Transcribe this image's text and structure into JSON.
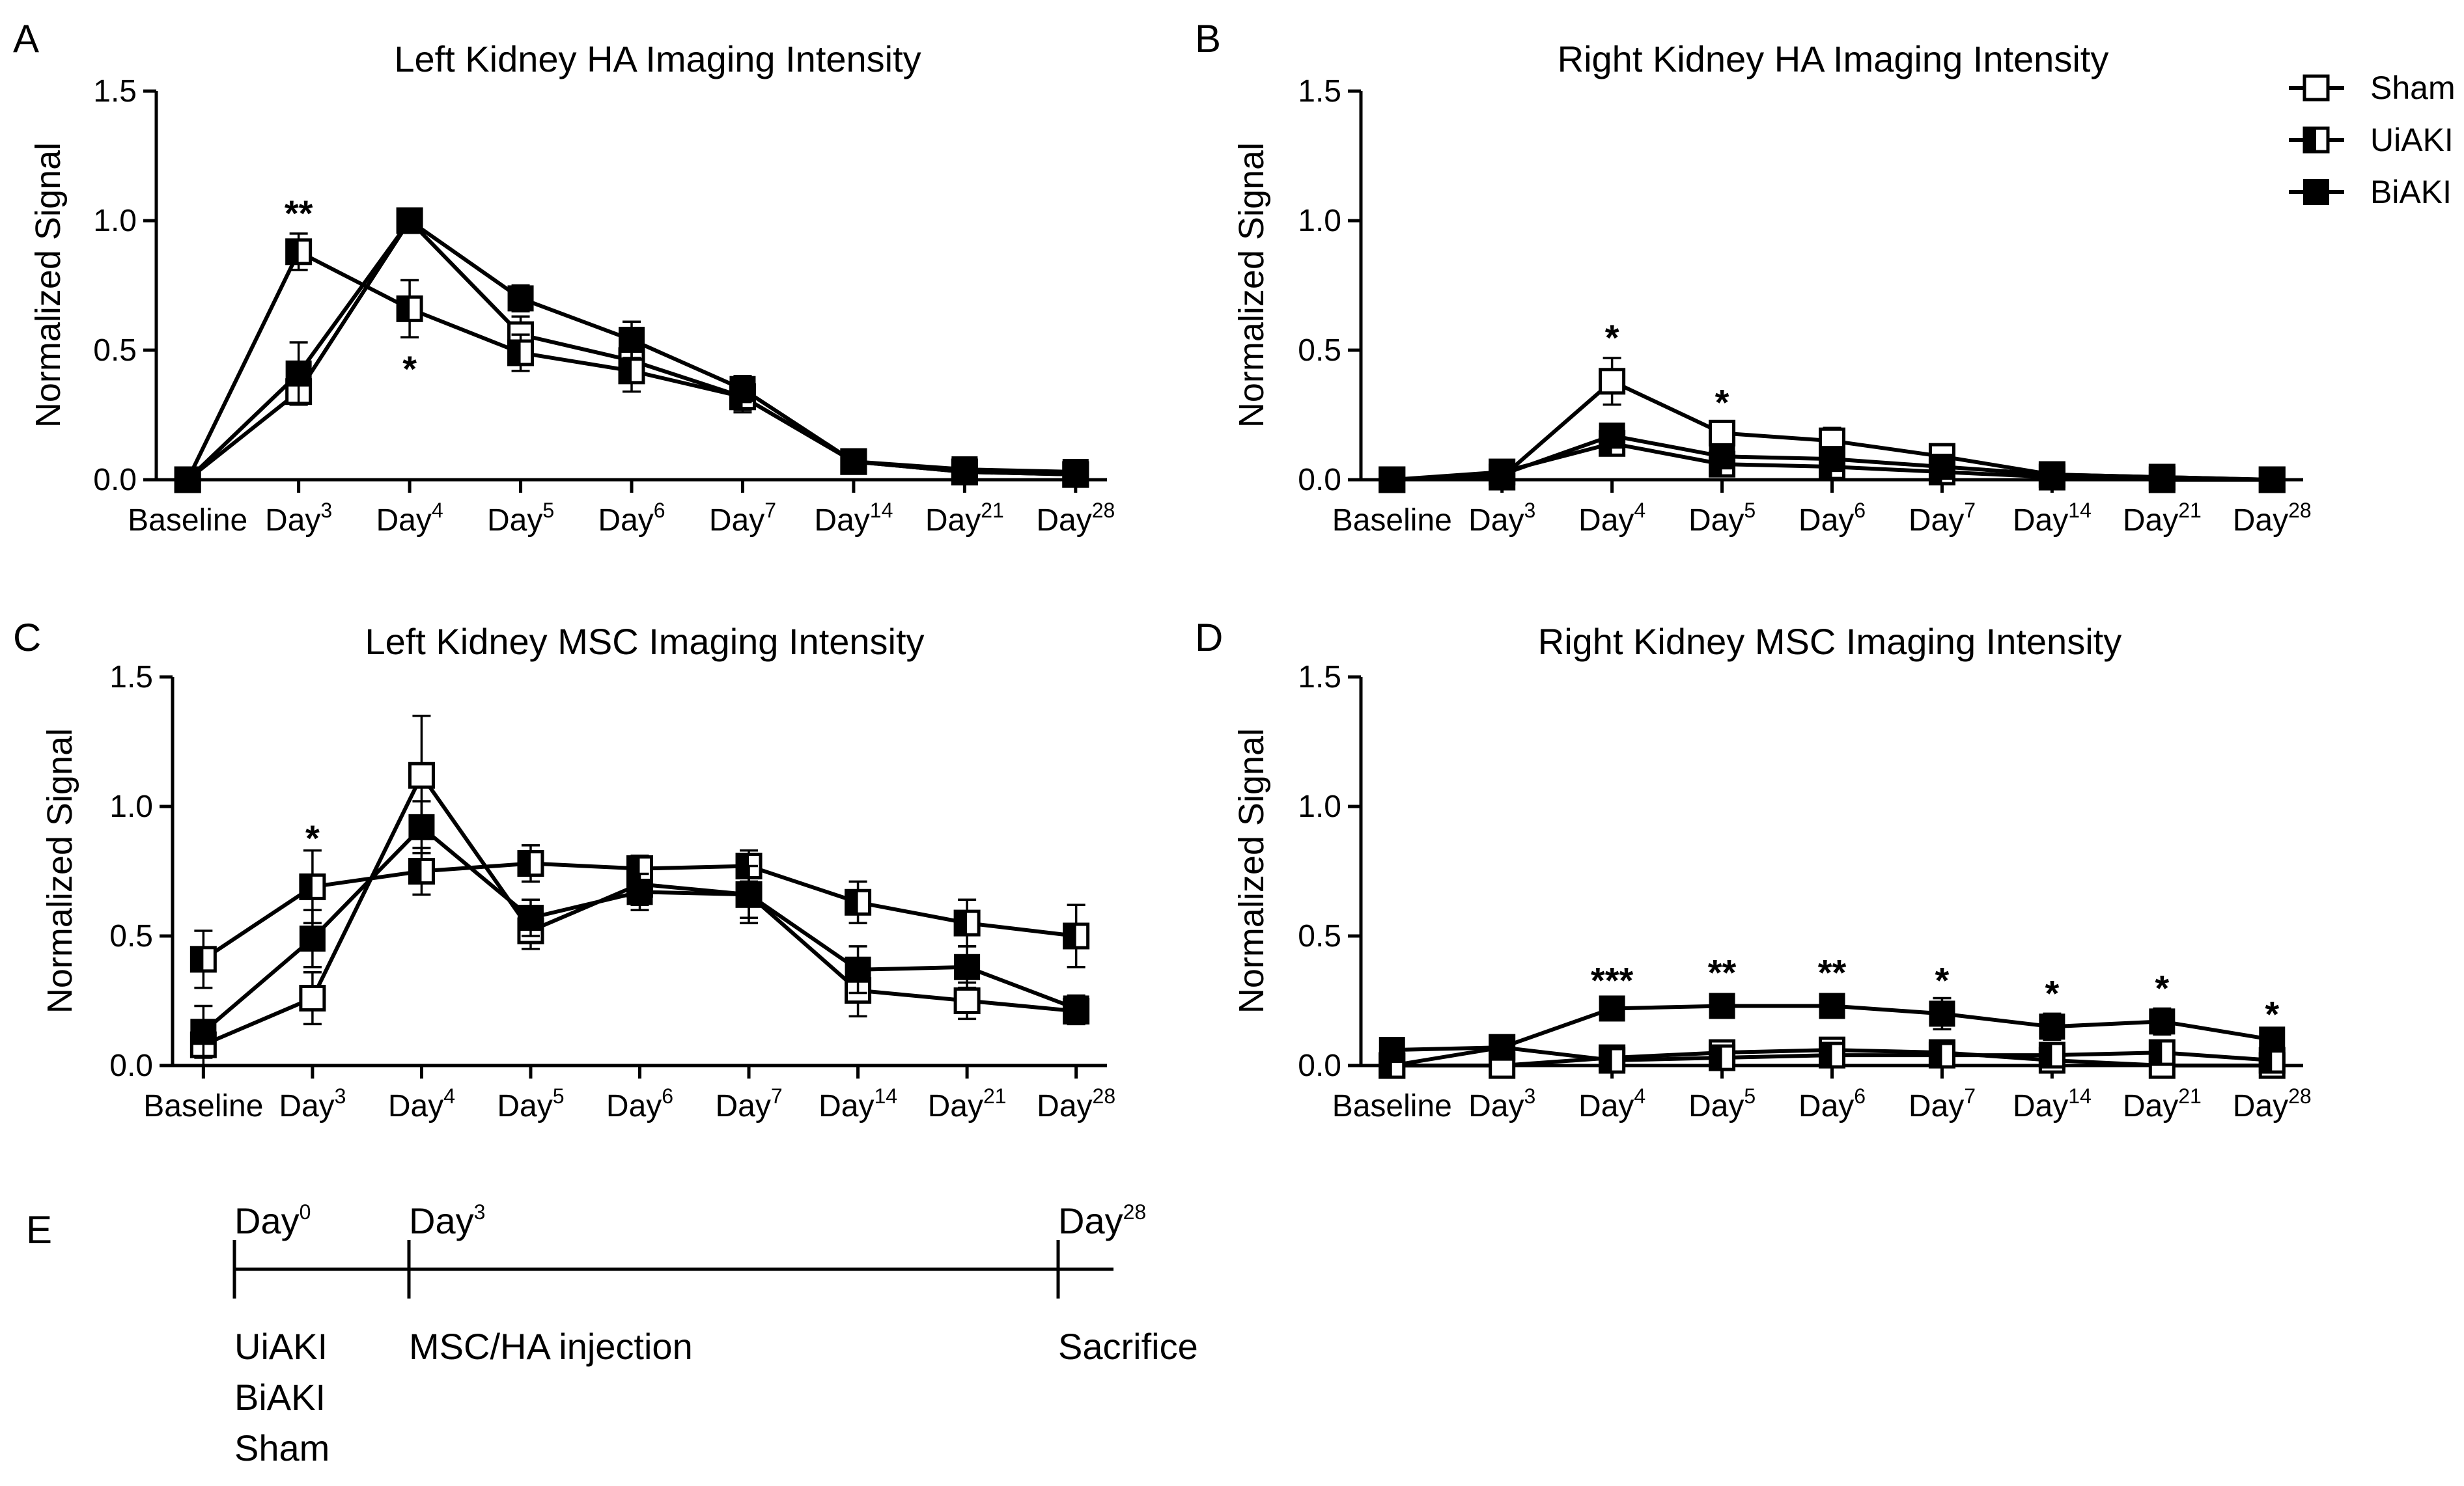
{
  "chart_data": [
    {
      "panel": "A",
      "type": "line",
      "title": "Left Kidney HA Imaging Intensity",
      "ylabel": "Normalized Signal",
      "xlabel": "",
      "ylim": [
        0,
        1.5
      ],
      "yticks": [
        "0.0",
        "0.5",
        "1.0",
        "1.5"
      ],
      "categories": [
        "Baseline",
        "Day3",
        "Day4",
        "Day5",
        "Day6",
        "Day7",
        "Day14",
        "Day21",
        "Day28"
      ],
      "series": [
        {
          "name": "Sham",
          "marker": "open-square",
          "values": [
            0.0,
            0.34,
            1.0,
            0.56,
            0.46,
            0.32,
            0.07,
            0.03,
            0.02
          ],
          "errors": [
            0.02,
            0.05,
            0.02,
            0.07,
            0.06,
            0.05,
            0.02,
            0.01,
            0.01
          ]
        },
        {
          "name": "UiAKI",
          "marker": "half-square",
          "values": [
            0.0,
            0.88,
            0.66,
            0.49,
            0.42,
            0.32,
            0.07,
            0.03,
            0.02
          ],
          "errors": [
            0.02,
            0.07,
            0.11,
            0.07,
            0.08,
            0.06,
            0.02,
            0.01,
            0.01
          ]
        },
        {
          "name": "BiAKI",
          "marker": "filled-square",
          "values": [
            0.0,
            0.41,
            1.0,
            0.7,
            0.54,
            0.35,
            0.07,
            0.04,
            0.03
          ],
          "errors": [
            0.02,
            0.12,
            0.02,
            0.05,
            0.07,
            0.05,
            0.02,
            0.01,
            0.01
          ]
        }
      ],
      "annotations": [
        {
          "text": "**",
          "category": "Day3",
          "y": 1.03
        },
        {
          "text": "*",
          "category": "Day4",
          "y": 0.43
        }
      ]
    },
    {
      "panel": "B",
      "type": "line",
      "title": "Right Kidney HA Imaging Intensity",
      "ylabel": "Normalized Signal",
      "xlabel": "",
      "ylim": [
        0,
        1.5
      ],
      "yticks": [
        "0.0",
        "0.5",
        "1.0",
        "1.5"
      ],
      "categories": [
        "Baseline",
        "Day3",
        "Day4",
        "Day5",
        "Day6",
        "Day7",
        "Day14",
        "Day21",
        "Day28"
      ],
      "series": [
        {
          "name": "Sham",
          "marker": "open-square",
          "values": [
            0.0,
            0.01,
            0.38,
            0.18,
            0.15,
            0.09,
            0.02,
            0.01,
            0.0
          ],
          "errors": [
            0.01,
            0.04,
            0.09,
            0.04,
            0.05,
            0.03,
            0.01,
            0.01,
            0.01
          ]
        },
        {
          "name": "UiAKI",
          "marker": "half-square",
          "values": [
            0.0,
            0.03,
            0.14,
            0.06,
            0.05,
            0.03,
            0.01,
            0.0,
            0.0
          ],
          "errors": [
            0.01,
            0.03,
            0.04,
            0.02,
            0.02,
            0.01,
            0.01,
            0.01,
            0.01
          ]
        },
        {
          "name": "BiAKI",
          "marker": "filled-square",
          "values": [
            0.0,
            0.02,
            0.17,
            0.09,
            0.08,
            0.05,
            0.02,
            0.01,
            0.0
          ],
          "errors": [
            0.01,
            0.03,
            0.04,
            0.03,
            0.03,
            0.02,
            0.01,
            0.01,
            0.01
          ]
        }
      ],
      "annotations": [
        {
          "text": "*",
          "category": "Day4",
          "y": 0.55
        },
        {
          "text": "*",
          "category": "Day5",
          "y": 0.3
        }
      ]
    },
    {
      "panel": "C",
      "type": "line",
      "title": "Left Kidney MSC Imaging Intensity",
      "ylabel": "Normalized Signal",
      "xlabel": "",
      "ylim": [
        0,
        1.5
      ],
      "yticks": [
        "0.0",
        "0.5",
        "1.0",
        "1.5"
      ],
      "categories": [
        "Baseline",
        "Day3",
        "Day4",
        "Day5",
        "Day6",
        "Day7",
        "Day14",
        "Day21",
        "Day28"
      ],
      "series": [
        {
          "name": "Sham",
          "marker": "open-square",
          "values": [
            0.08,
            0.26,
            1.12,
            0.52,
            0.7,
            0.66,
            0.29,
            0.25,
            0.21
          ],
          "errors": [
            0.09,
            0.1,
            0.23,
            0.07,
            0.08,
            0.09,
            0.1,
            0.07,
            0.05
          ]
        },
        {
          "name": "UiAKI",
          "marker": "half-square",
          "values": [
            0.41,
            0.69,
            0.75,
            0.78,
            0.76,
            0.77,
            0.63,
            0.55,
            0.5
          ],
          "errors": [
            0.11,
            0.14,
            0.09,
            0.07,
            0.05,
            0.06,
            0.08,
            0.09,
            0.12
          ]
        },
        {
          "name": "BiAKI",
          "marker": "filled-square",
          "values": [
            0.13,
            0.49,
            0.92,
            0.57,
            0.67,
            0.66,
            0.37,
            0.38,
            0.22
          ],
          "errors": [
            0.1,
            0.11,
            0.1,
            0.07,
            0.07,
            0.11,
            0.09,
            0.08,
            0.05
          ]
        }
      ],
      "annotations": [
        {
          "text": "*",
          "category": "Day3",
          "y": 0.88
        }
      ]
    },
    {
      "panel": "D",
      "type": "line",
      "title": "Right Kidney MSC Imaging Intensity",
      "ylabel": "Normalized Signal",
      "xlabel": "",
      "ylim": [
        0,
        1.5
      ],
      "yticks": [
        "0.0",
        "0.5",
        "1.0",
        "1.5"
      ],
      "categories": [
        "Baseline",
        "Day3",
        "Day4",
        "Day5",
        "Day6",
        "Day7",
        "Day14",
        "Day21",
        "Day28"
      ],
      "series": [
        {
          "name": "Sham",
          "marker": "open-square",
          "values": [
            0.0,
            0.0,
            0.03,
            0.05,
            0.06,
            0.05,
            0.02,
            0.0,
            0.0
          ],
          "errors": [
            0.02,
            0.02,
            0.02,
            0.02,
            0.02,
            0.02,
            0.02,
            0.02,
            0.02
          ]
        },
        {
          "name": "UiAKI",
          "marker": "half-square",
          "values": [
            0.0,
            0.07,
            0.02,
            0.03,
            0.04,
            0.04,
            0.04,
            0.05,
            0.02
          ],
          "errors": [
            0.02,
            0.02,
            0.02,
            0.02,
            0.02,
            0.02,
            0.02,
            0.03,
            0.02
          ]
        },
        {
          "name": "BiAKI",
          "marker": "filled-square",
          "values": [
            0.06,
            0.07,
            0.22,
            0.23,
            0.23,
            0.2,
            0.15,
            0.17,
            0.1
          ],
          "errors": [
            0.02,
            0.02,
            0.03,
            0.04,
            0.04,
            0.06,
            0.05,
            0.05,
            0.03
          ]
        }
      ],
      "annotations": [
        {
          "text": "***",
          "category": "Day4",
          "y": 0.33
        },
        {
          "text": "**",
          "category": "Day5",
          "y": 0.36
        },
        {
          "text": "**",
          "category": "Day6",
          "y": 0.36
        },
        {
          "text": "*",
          "category": "Day7",
          "y": 0.33
        },
        {
          "text": "*",
          "category": "Day14",
          "y": 0.28
        },
        {
          "text": "*",
          "category": "Day21",
          "y": 0.3
        },
        {
          "text": "*",
          "category": "Day28",
          "y": 0.2
        }
      ]
    }
  ],
  "legend": {
    "entries": [
      {
        "name": "Sham",
        "marker": "open-square"
      },
      {
        "name": "UiAKI",
        "marker": "half-square"
      },
      {
        "name": "BiAKI",
        "marker": "filled-square"
      }
    ]
  },
  "timeline": {
    "panel": "E",
    "events": [
      {
        "label": "Day0",
        "notes": [
          "UiAKI",
          "BiAKI",
          "Sham"
        ]
      },
      {
        "label": "Day3",
        "notes": [
          "MSC/HA injection"
        ]
      },
      {
        "label": "Day28",
        "notes": [
          "Sacrifice"
        ]
      }
    ]
  }
}
